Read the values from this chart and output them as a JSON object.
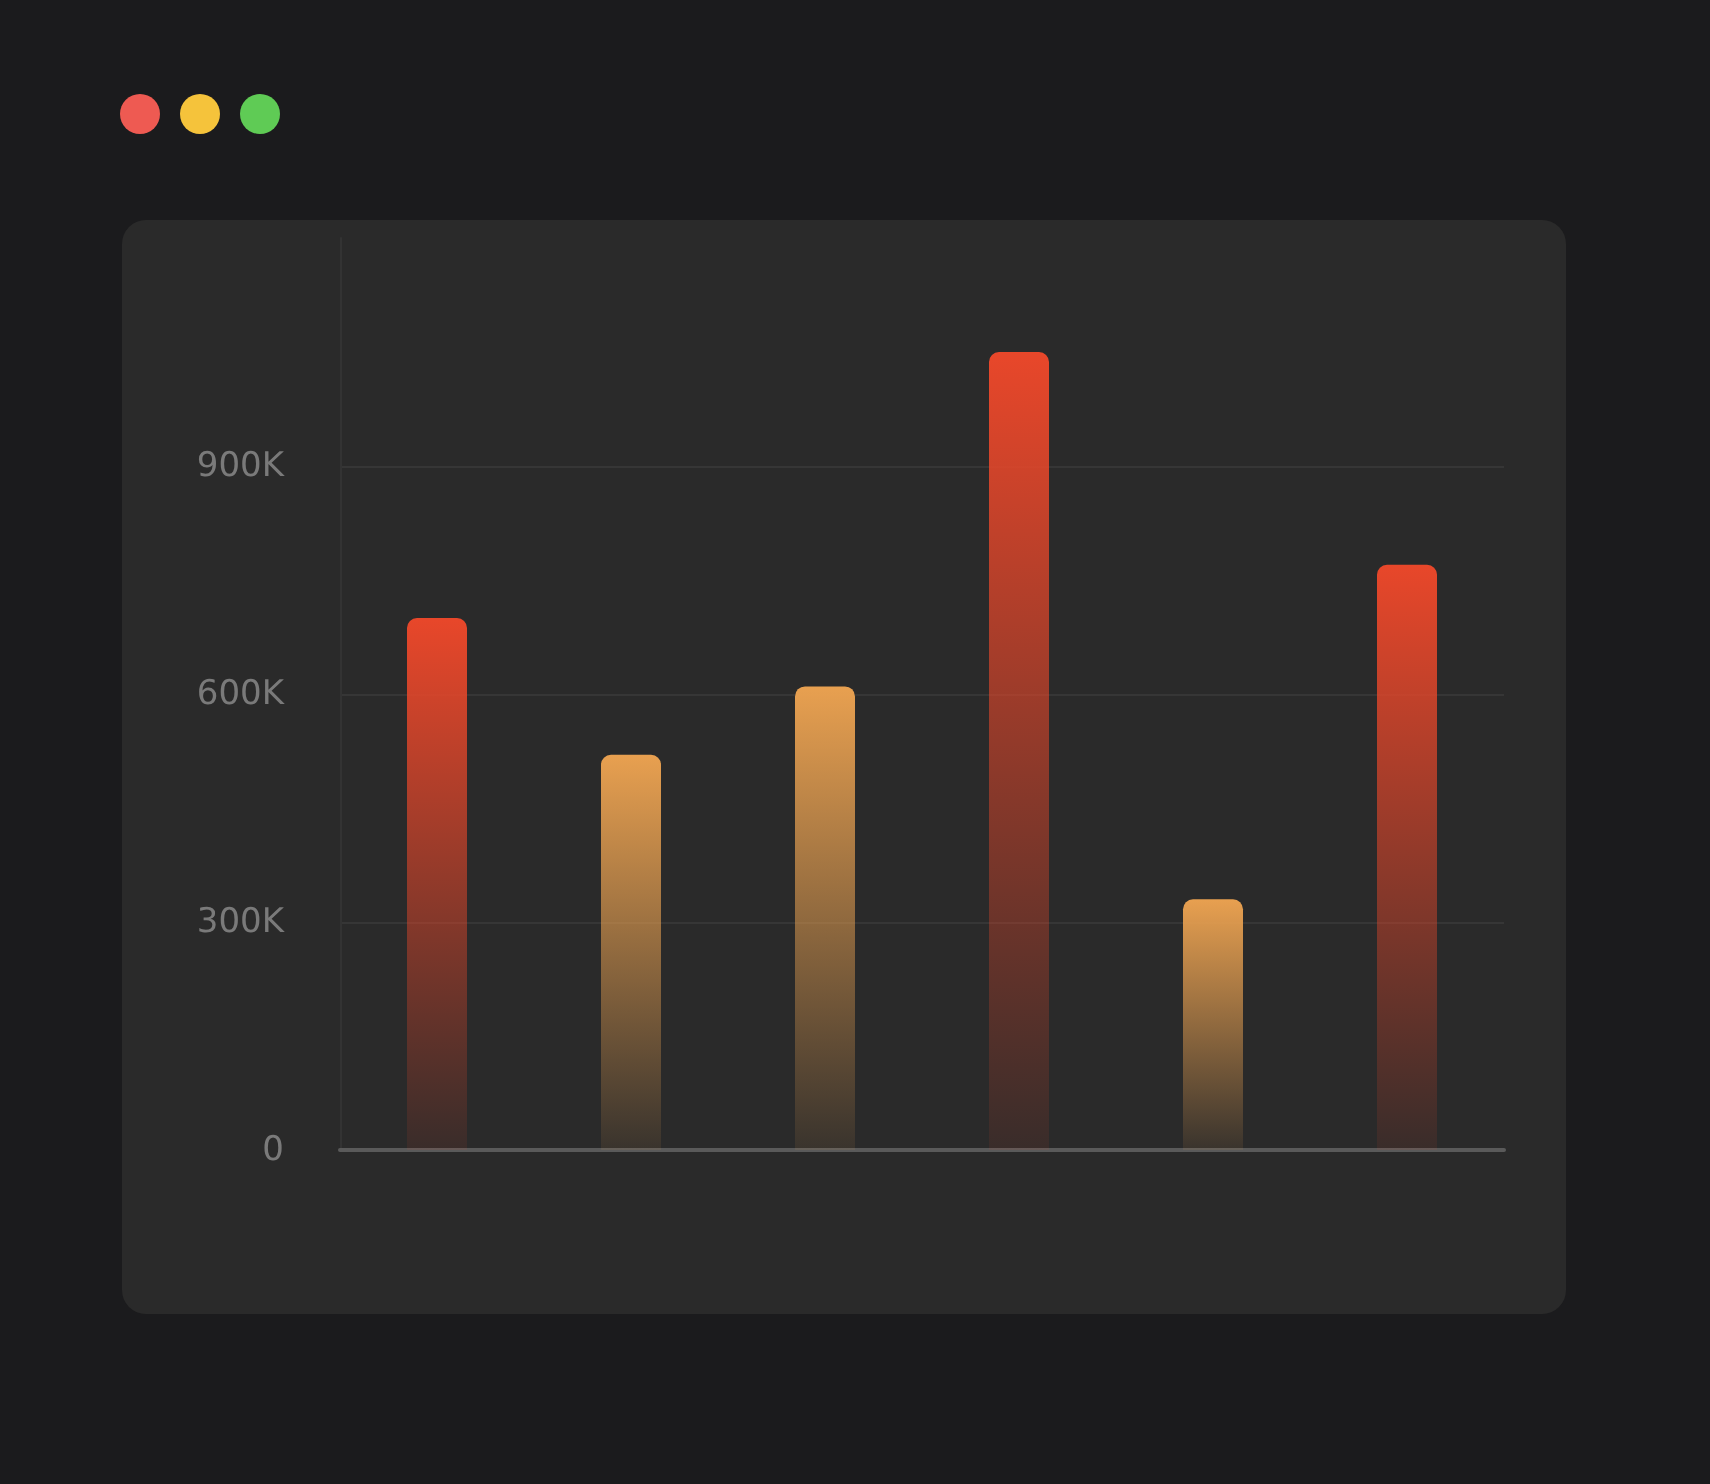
{
  "chart_data": {
    "type": "bar",
    "categories": [
      null,
      null,
      null,
      null,
      null,
      null
    ],
    "values": [
      700000,
      520000,
      610000,
      1050000,
      330000,
      770000
    ],
    "colors": [
      "#e8472a",
      "#e8a050",
      "#e8a050",
      "#e8472a",
      "#e8a050",
      "#e8472a"
    ],
    "ylim": [
      0,
      1200000
    ],
    "yticks": [
      0,
      {
        "value": 300000,
        "label": "300K"
      },
      {
        "value": 600000,
        "label": "600K"
      },
      {
        "value": 900000,
        "label": "900K"
      }
    ],
    "grid": "y"
  }
}
